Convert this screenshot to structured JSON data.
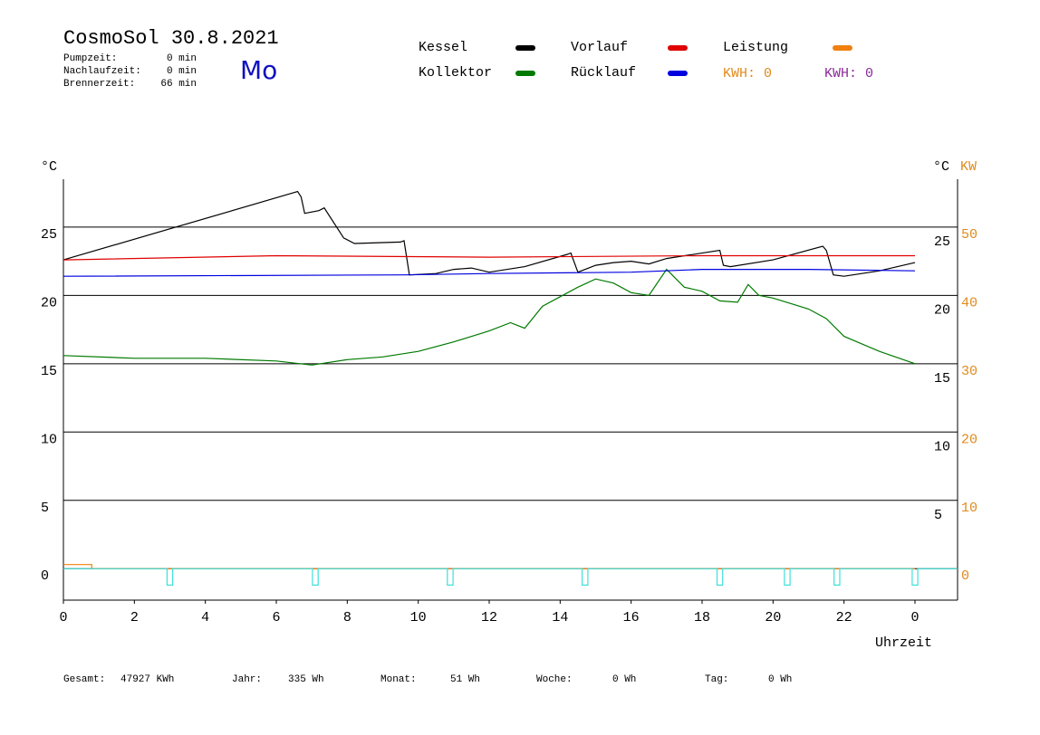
{
  "header": {
    "title": "CosmoSol 30.8.2021",
    "day": "Mo",
    "stats": [
      {
        "label": "Pumpzeit:",
        "value": "0 min"
      },
      {
        "label": "Nachlaufzeit:",
        "value": "0 min"
      },
      {
        "label": "Brennerzeit:",
        "value": "66 min"
      }
    ],
    "kwh": [
      {
        "text": "KWH: 0",
        "color": "#e08a1c"
      },
      {
        "text": "KWH: 0",
        "color": "#8a2a9a"
      }
    ]
  },
  "chart_data": {
    "type": "line",
    "xlabel": "Uhrzeit",
    "ylabel": "°C",
    "y2label": "KW",
    "xlim": [
      0,
      25.2
    ],
    "xticks": [
      0,
      2,
      4,
      6,
      8,
      10,
      12,
      14,
      16,
      18,
      20,
      22,
      {
        "value": 24,
        "label": "0"
      }
    ],
    "ylim": [
      -2.3,
      28.5
    ],
    "yticks": [
      0,
      5,
      10,
      15,
      20,
      25
    ],
    "y2lim": [
      -4.6,
      57
    ],
    "y2ticks": [
      0,
      10,
      20,
      30,
      40,
      50
    ],
    "grid": true,
    "series": [
      {
        "name": "Kessel",
        "color": "#000000",
        "x": [
          0,
          6.6,
          6.7,
          6.8,
          7.2,
          7.35,
          7.9,
          8.2,
          9.5,
          9.6,
          9.75,
          10.5,
          11,
          11.5,
          12,
          13,
          14.2,
          14.3,
          14.5,
          15,
          15.5,
          16,
          16.5,
          17,
          18.5,
          18.6,
          18.8,
          20,
          21.4,
          21.5,
          21.7,
          22,
          23,
          24
        ],
        "values": [
          22.6,
          27.6,
          27.2,
          26.0,
          26.2,
          26.4,
          24.2,
          23.8,
          23.9,
          24.0,
          21.5,
          21.6,
          21.9,
          22.0,
          21.7,
          22.1,
          23.0,
          23.1,
          21.7,
          22.2,
          22.4,
          22.5,
          22.3,
          22.7,
          23.3,
          22.2,
          22.1,
          22.6,
          23.6,
          23.3,
          21.5,
          21.4,
          21.8,
          22.4
        ]
      },
      {
        "name": "Vorlauf",
        "color": "#e00000",
        "x": [
          0,
          6,
          12,
          18,
          24
        ],
        "values": [
          22.6,
          22.9,
          22.8,
          22.9,
          22.9
        ]
      },
      {
        "name": "Leistung",
        "color": "#f08010",
        "axis": "y2",
        "x": [
          0,
          0.8,
          0.8,
          24
        ],
        "values": [
          0.6,
          0.6,
          0,
          0
        ]
      },
      {
        "name": "Kollektor",
        "color": "#007a00",
        "x": [
          0,
          2,
          4,
          6,
          7,
          8,
          9,
          10,
          11,
          12,
          12.6,
          13,
          13.5,
          14,
          14.5,
          15,
          15.5,
          16,
          16.5,
          17,
          17.5,
          18,
          18.5,
          19,
          19.3,
          19.6,
          20,
          21,
          21.5,
          22,
          23,
          24
        ],
        "values": [
          15.6,
          15.4,
          15.4,
          15.2,
          14.9,
          15.3,
          15.5,
          15.9,
          16.6,
          17.4,
          18.0,
          17.6,
          19.2,
          19.9,
          20.6,
          21.2,
          20.9,
          20.2,
          20.0,
          21.9,
          20.6,
          20.3,
          19.6,
          19.5,
          20.8,
          20.0,
          19.8,
          19.0,
          18.3,
          17.0,
          15.9,
          15.0
        ]
      },
      {
        "name": "Rücklauf",
        "color": "#0000e0",
        "x": [
          0,
          9.6,
          12,
          16,
          18,
          21,
          24
        ],
        "values": [
          21.4,
          21.5,
          21.6,
          21.7,
          21.9,
          21.9,
          21.8
        ]
      },
      {
        "color": "#40e0d8",
        "x": [
          0,
          2.92,
          2.92,
          3.08,
          3.08,
          7.02,
          7.02,
          7.18,
          7.18,
          10.82,
          10.82,
          10.98,
          10.98,
          14.62,
          14.62,
          14.78,
          14.78,
          18.42,
          18.42,
          18.58,
          18.58,
          20.32,
          20.32,
          20.48,
          20.48,
          21.72,
          21.72,
          21.88,
          21.88,
          23.92,
          23.92,
          24.08,
          24.08,
          25.2
        ],
        "values": [
          0,
          0,
          -1.2,
          -1.2,
          0,
          0,
          -1.2,
          -1.2,
          0,
          0,
          -1.2,
          -1.2,
          0,
          0,
          -1.2,
          -1.2,
          0,
          0,
          -1.2,
          -1.2,
          0,
          0,
          -1.2,
          -1.2,
          0,
          0,
          -1.2,
          -1.2,
          0,
          0,
          -1.2,
          -1.2,
          0,
          0
        ]
      }
    ]
  },
  "footer": [
    {
      "label": "Gesamt:",
      "value": "47927 KWh"
    },
    {
      "label": "Jahr:",
      "value": "335 Wh"
    },
    {
      "label": "Monat:",
      "value": "51 Wh"
    },
    {
      "label": "Woche:",
      "value": "0 Wh"
    },
    {
      "label": "Tag:",
      "value": "0 Wh"
    }
  ]
}
